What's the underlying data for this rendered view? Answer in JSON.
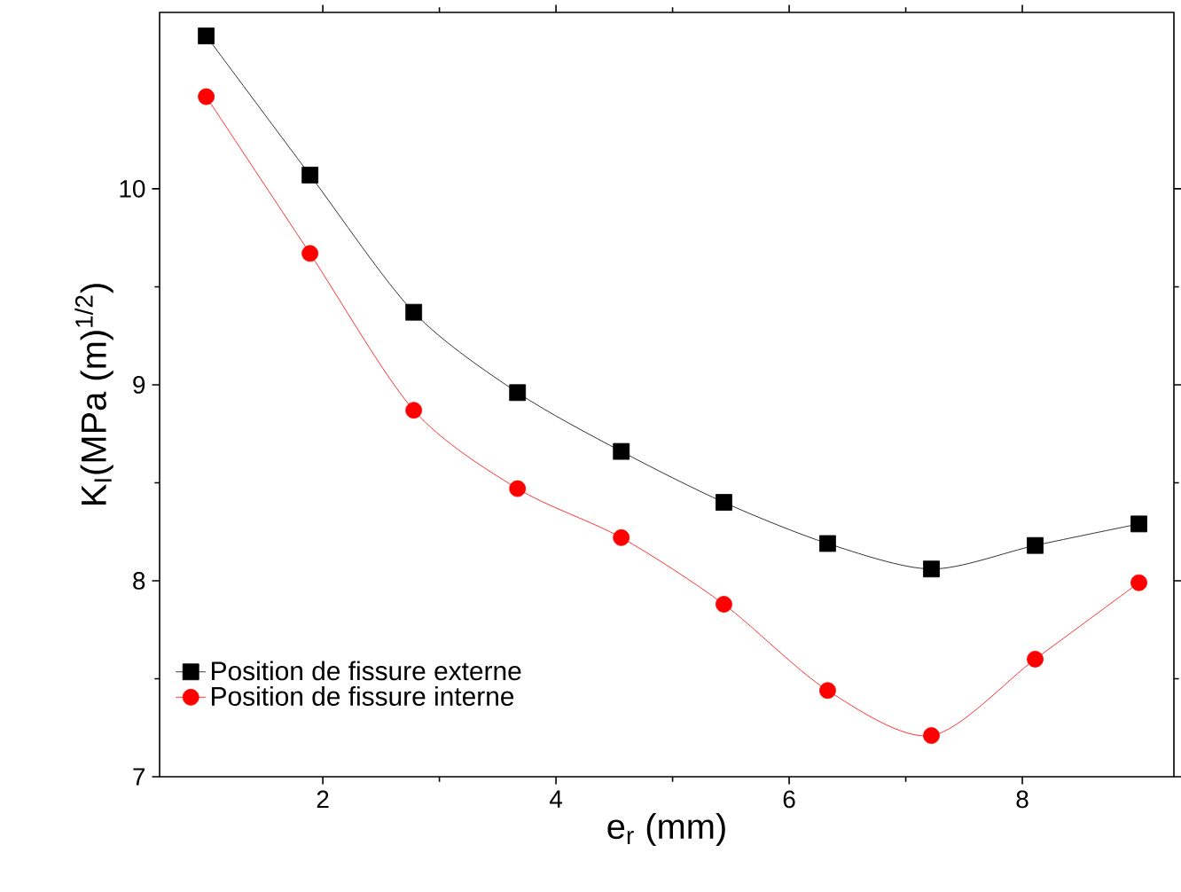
{
  "chart_data": {
    "type": "line",
    "xlabel": "e$_{r}$ (mm)",
    "ylabel": "K$_{I}$(MPa (m)$^{1/2}$)",
    "x": [
      1,
      1.89,
      2.78,
      3.67,
      4.56,
      5.44,
      6.33,
      7.22,
      8.11,
      9
    ],
    "series": [
      {
        "name": "Position de fissure externe",
        "color": "#000000",
        "marker": "square",
        "values": [
          10.78,
          10.07,
          9.37,
          8.96,
          8.66,
          8.4,
          8.19,
          8.06,
          8.18,
          8.29
        ]
      },
      {
        "name": "Position de fissure interne",
        "color": "#ff0000",
        "marker": "circle",
        "values": [
          10.47,
          9.67,
          8.87,
          8.47,
          8.22,
          7.88,
          7.44,
          7.21,
          7.6,
          7.99
        ]
      }
    ],
    "xlim": [
      0.6,
      9.3
    ],
    "ylim": [
      7,
      10.9
    ],
    "xticks": [
      2,
      4,
      6,
      8
    ],
    "yticks": [
      7,
      8,
      9,
      10
    ],
    "legend": "bottom left",
    "line_style": "solid"
  }
}
